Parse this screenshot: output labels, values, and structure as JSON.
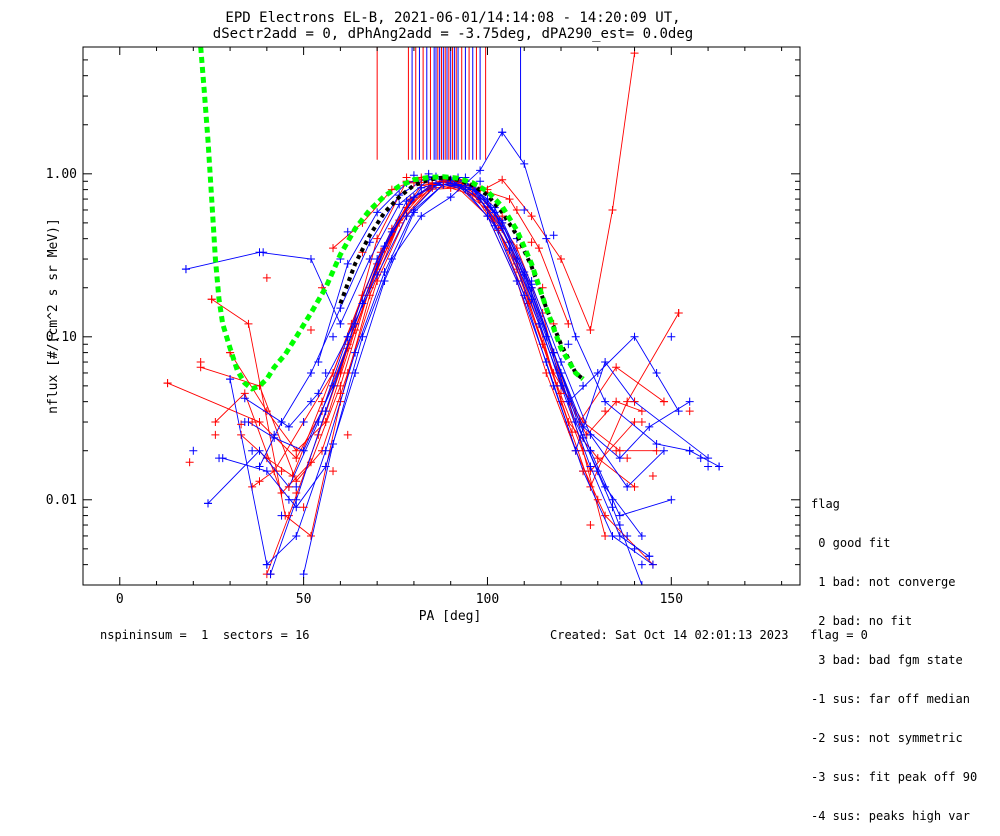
{
  "title_line1": "EPD Electrons EL-B, 2021-06-01/14:14:08 - 14:20:09 UT,",
  "title_line2": "dSectr2add = 0, dPhAng2add = -3.75deg, dPA290_est=   0.0deg",
  "footer_left": "nspininsum =  1  sectors = 16",
  "footer_right": "Created: Sat Oct 14 02:01:13 2023   flag = 0",
  "legend": {
    "title": "flag",
    "items": [
      " 0 good fit",
      " 1 bad: not converge",
      " 2 bad: no fit",
      " 3 bad: bad fgm state",
      "-1 sus: far off median",
      "-2 sus: not symmetric",
      "-3 sus: fit peak off 90",
      "-4 sus: peaks high var"
    ]
  },
  "colors": {
    "red": "#ff0000",
    "blue": "#0000ff",
    "green": "#00ff00",
    "black": "#000000"
  },
  "chart_data": {
    "type": "line",
    "xlabel": "PA [deg]",
    "ylabel": "nflux [#/(cm^2 s sr MeV)]",
    "xlim": [
      -10,
      185
    ],
    "ylim": [
      0.003,
      6.0
    ],
    "yscale": "log",
    "x_ticks": [
      0,
      50,
      100,
      150
    ],
    "x_tick_labels": [
      "0",
      "50",
      "100",
      "150"
    ],
    "y_ticks": [
      0.01,
      0.1,
      1.0
    ],
    "y_tick_labels": [
      "0.01",
      "0.10",
      "1.00"
    ],
    "series": [
      {
        "color": "red",
        "x": [
          13,
          38,
          48,
          55,
          62,
          70,
          78,
          85,
          92,
          100,
          108,
          115,
          120,
          127,
          135,
          142
        ],
        "y": [
          0.052,
          0.03,
          0.018,
          0.035,
          0.09,
          0.28,
          0.62,
          0.88,
          0.9,
          0.66,
          0.35,
          0.14,
          0.05,
          0.025,
          0.04,
          0.035
        ]
      },
      {
        "color": "red",
        "x": [
          22,
          38,
          48,
          55,
          62,
          70,
          78,
          85,
          92,
          100,
          108,
          115,
          122,
          130,
          140
        ],
        "y": [
          0.065,
          0.05,
          0.013,
          0.02,
          0.06,
          0.22,
          0.55,
          0.82,
          0.84,
          0.6,
          0.28,
          0.09,
          0.03,
          0.018,
          0.012
        ]
      },
      {
        "color": "red",
        "x": [
          25,
          35,
          45,
          52,
          60,
          68,
          76,
          84,
          92,
          100,
          108,
          116,
          124,
          132,
          145
        ],
        "y": [
          0.17,
          0.12,
          0.008,
          0.006,
          0.04,
          0.18,
          0.5,
          0.8,
          0.82,
          0.55,
          0.22,
          0.06,
          0.02,
          0.008,
          0.004
        ]
      },
      {
        "color": "red",
        "x": [
          30,
          40,
          48,
          56,
          64,
          72,
          80,
          88,
          96,
          104,
          112,
          118,
          125,
          135,
          148
        ],
        "y": [
          0.08,
          0.035,
          0.02,
          0.03,
          0.11,
          0.35,
          0.72,
          0.92,
          0.86,
          0.5,
          0.2,
          0.08,
          0.03,
          0.065,
          0.04
        ]
      },
      {
        "color": "red",
        "x": [
          36,
          42,
          50,
          58,
          66,
          74,
          82,
          90,
          98,
          106,
          114,
          120,
          128,
          138,
          152
        ],
        "y": [
          0.012,
          0.015,
          0.03,
          0.06,
          0.18,
          0.46,
          0.85,
          0.9,
          0.7,
          0.38,
          0.12,
          0.04,
          0.012,
          0.04,
          0.14
        ]
      },
      {
        "color": "red",
        "x": [
          40,
          46,
          54,
          62,
          70,
          78,
          86,
          94,
          102,
          110,
          118,
          126,
          132
        ],
        "y": [
          0.0035,
          0.008,
          0.025,
          0.085,
          0.26,
          0.62,
          0.86,
          0.85,
          0.55,
          0.24,
          0.08,
          0.02,
          0.006
        ]
      },
      {
        "color": "red",
        "x": [
          33,
          40,
          47,
          55,
          63,
          71,
          79,
          87,
          95,
          103,
          111,
          119,
          128,
          140
        ],
        "y": [
          0.025,
          0.018,
          0.014,
          0.04,
          0.12,
          0.33,
          0.7,
          0.9,
          0.82,
          0.45,
          0.16,
          0.05,
          0.015,
          0.03
        ]
      },
      {
        "color": "red",
        "x": [
          60,
          70,
          78,
          84,
          90,
          96,
          104,
          112,
          120,
          128,
          134,
          140
        ],
        "y": [
          0.06,
          0.4,
          0.9,
          0.88,
          0.82,
          0.74,
          0.92,
          0.55,
          0.3,
          0.11,
          0.6,
          5.5
        ]
      },
      {
        "color": "red",
        "x": [
          26,
          34,
          44,
          52,
          60,
          68,
          76,
          84,
          92,
          100,
          108,
          118,
          126,
          136,
          146
        ],
        "y": [
          0.03,
          0.045,
          0.011,
          0.017,
          0.05,
          0.2,
          0.52,
          0.84,
          0.88,
          0.62,
          0.26,
          0.06,
          0.03,
          0.02,
          0.02
        ]
      },
      {
        "color": "red",
        "x": [
          58,
          66,
          74,
          82,
          90,
          98,
          106,
          114,
          122
        ],
        "y": [
          0.35,
          0.5,
          0.8,
          0.95,
          0.92,
          0.8,
          0.7,
          0.35,
          0.12
        ]
      },
      {
        "color": "blue",
        "x": [
          18,
          38,
          52,
          60,
          68,
          76,
          84,
          92,
          100,
          108,
          116,
          124,
          132,
          142
        ],
        "y": [
          0.26,
          0.33,
          0.3,
          0.12,
          0.3,
          0.65,
          0.92,
          0.95,
          0.7,
          0.3,
          0.1,
          0.03,
          0.012,
          0.006
        ]
      },
      {
        "color": "blue",
        "x": [
          24,
          38,
          46,
          54,
          62,
          70,
          78,
          86,
          94,
          102,
          110,
          118,
          126,
          134,
          145
        ],
        "y": [
          0.0095,
          0.02,
          0.012,
          0.03,
          0.1,
          0.3,
          0.68,
          0.88,
          0.8,
          0.48,
          0.18,
          0.05,
          0.015,
          0.006,
          0.004
        ]
      },
      {
        "color": "blue",
        "x": [
          30,
          40,
          48,
          56,
          64,
          72,
          80,
          88,
          96,
          104,
          112,
          120,
          128,
          136,
          150
        ],
        "y": [
          0.055,
          0.004,
          0.006,
          0.02,
          0.08,
          0.25,
          0.6,
          0.86,
          0.82,
          0.5,
          0.2,
          0.06,
          0.02,
          0.008,
          0.01
        ]
      },
      {
        "color": "blue",
        "x": [
          38,
          44,
          52,
          60,
          68,
          76,
          84,
          92,
          100,
          108,
          116,
          124,
          132,
          140,
          160
        ],
        "y": [
          0.016,
          0.03,
          0.06,
          0.15,
          0.38,
          0.74,
          0.96,
          0.86,
          0.55,
          0.22,
          0.07,
          0.02,
          0.07,
          0.04,
          0.018
        ]
      },
      {
        "color": "blue",
        "x": [
          41,
          48,
          56,
          64,
          72,
          80,
          88,
          96,
          104,
          112,
          120,
          128,
          136,
          144
        ],
        "y": [
          0.0035,
          0.01,
          0.035,
          0.12,
          0.36,
          0.72,
          0.9,
          0.8,
          0.46,
          0.17,
          0.05,
          0.016,
          0.006,
          0.0045
        ]
      },
      {
        "color": "blue",
        "x": [
          35,
          42,
          50,
          58,
          66,
          74,
          82,
          90,
          98,
          106,
          114,
          122,
          130,
          140,
          152
        ],
        "y": [
          0.03,
          0.024,
          0.02,
          0.05,
          0.16,
          0.44,
          0.82,
          0.92,
          0.7,
          0.34,
          0.12,
          0.04,
          0.06,
          0.1,
          0.035
        ]
      },
      {
        "color": "blue",
        "x": [
          50,
          58,
          66,
          74,
          82,
          90,
          98,
          104,
          110,
          116,
          124,
          132,
          146,
          155,
          163
        ],
        "y": [
          0.0035,
          0.022,
          0.1,
          0.3,
          0.55,
          0.72,
          1.05,
          1.8,
          1.15,
          0.4,
          0.1,
          0.04,
          0.022,
          0.02,
          0.016
        ]
      },
      {
        "color": "blue",
        "x": [
          28,
          40,
          48,
          56,
          64,
          72,
          80,
          88,
          96,
          104,
          112,
          120,
          128,
          138,
          148
        ],
        "y": [
          0.018,
          0.015,
          0.009,
          0.016,
          0.06,
          0.22,
          0.58,
          0.86,
          0.84,
          0.52,
          0.21,
          0.07,
          0.025,
          0.012,
          0.02
        ]
      },
      {
        "color": "blue",
        "x": [
          54,
          62,
          70,
          78,
          86,
          94,
          102,
          110,
          118,
          126,
          134,
          142
        ],
        "y": [
          0.07,
          0.28,
          0.58,
          0.88,
          0.96,
          0.9,
          0.62,
          0.25,
          0.08,
          0.024,
          0.009,
          0.003
        ]
      },
      {
        "color": "blue",
        "x": [
          34,
          46,
          54,
          62,
          70,
          78,
          86,
          94,
          102,
          110,
          118,
          126,
          136,
          144,
          155
        ],
        "y": [
          0.042,
          0.028,
          0.045,
          0.1,
          0.24,
          0.55,
          0.85,
          0.9,
          0.58,
          0.24,
          0.08,
          0.028,
          0.018,
          0.028,
          0.04
        ]
      }
    ],
    "markers": [
      {
        "color": "red",
        "x": [
          13,
          19,
          22,
          25,
          26,
          30,
          33,
          36,
          38,
          40,
          41,
          44,
          46,
          48,
          50,
          52,
          55,
          58,
          60,
          62,
          64,
          66,
          78,
          80,
          82,
          85,
          88,
          92,
          96,
          100,
          104,
          108,
          112,
          115,
          118,
          120,
          123,
          126,
          128,
          130,
          132,
          135,
          138,
          140,
          142,
          145,
          148,
          152,
          155
        ],
        "y": [
          0.052,
          0.017,
          0.07,
          0.17,
          0.025,
          0.08,
          0.029,
          0.03,
          0.013,
          0.23,
          0.0035,
          0.015,
          0.012,
          0.011,
          0.009,
          0.11,
          0.2,
          0.015,
          0.045,
          0.025,
          0.12,
          0.33,
          0.95,
          0.88,
          0.92,
          0.86,
          0.9,
          0.92,
          0.85,
          0.8,
          0.55,
          0.6,
          0.38,
          0.2,
          0.12,
          0.045,
          0.026,
          0.015,
          0.007,
          0.01,
          0.035,
          0.02,
          0.018,
          0.04,
          0.03,
          0.014,
          0.04,
          0.14,
          0.035
        ]
      },
      {
        "color": "blue",
        "x": [
          18,
          20,
          24,
          27,
          30,
          34,
          36,
          38,
          39,
          40,
          41,
          42,
          44,
          46,
          48,
          50,
          52,
          56,
          58,
          60,
          62,
          64,
          80,
          84,
          86,
          90,
          94,
          98,
          104,
          108,
          110,
          112,
          118,
          122,
          126,
          128,
          130,
          134,
          136,
          138,
          140,
          142,
          144,
          146,
          150,
          155,
          158,
          160,
          163
        ],
        "y": [
          0.26,
          0.02,
          0.0095,
          0.018,
          0.055,
          0.03,
          0.02,
          0.016,
          0.33,
          0.004,
          0.0035,
          0.025,
          0.008,
          0.01,
          0.012,
          0.03,
          0.04,
          0.06,
          0.1,
          0.3,
          0.44,
          0.12,
          0.98,
          1.0,
          0.96,
          0.92,
          0.95,
          0.9,
          1.8,
          0.4,
          0.6,
          0.22,
          0.42,
          0.09,
          0.05,
          0.02,
          0.015,
          0.01,
          0.007,
          0.006,
          0.005,
          0.004,
          0.0045,
          0.06,
          0.1,
          0.02,
          0.018,
          0.016,
          0.016
        ]
      }
    ],
    "spikes_red": [
      70,
      78.5,
      80.5,
      82.5,
      84.5,
      86.5,
      87.5,
      88.5,
      89.5,
      90.5,
      91.5,
      93,
      95,
      97,
      99.5
    ],
    "spikes_blue": [
      79.5,
      81.5,
      83.5,
      85.5,
      86,
      87,
      88,
      89,
      90,
      91,
      92,
      94,
      96,
      98,
      109
    ],
    "spike_bottom": 1.22,
    "green_curve": {
      "x": [
        22,
        23,
        24,
        25,
        26,
        27,
        28,
        30,
        32,
        34,
        36,
        38,
        40,
        42,
        45,
        48,
        52,
        56,
        60,
        64,
        68,
        72,
        76,
        80,
        84,
        88,
        92,
        96,
        100,
        104,
        108,
        112,
        116,
        120,
        124,
        126
      ],
      "y": [
        6.0,
        3.2,
        1.6,
        0.7,
        0.3,
        0.17,
        0.12,
        0.085,
        0.062,
        0.052,
        0.048,
        0.05,
        0.055,
        0.065,
        0.078,
        0.1,
        0.14,
        0.2,
        0.32,
        0.46,
        0.6,
        0.73,
        0.84,
        0.92,
        0.95,
        0.96,
        0.94,
        0.88,
        0.78,
        0.63,
        0.45,
        0.28,
        0.15,
        0.085,
        0.06,
        0.055
      ]
    },
    "black_curve": {
      "x": [
        60,
        64,
        68,
        72,
        76,
        80,
        84,
        88,
        92,
        96,
        100,
        104,
        108,
        112,
        116,
        120,
        124,
        126
      ],
      "y": [
        0.16,
        0.28,
        0.42,
        0.58,
        0.72,
        0.85,
        0.92,
        0.95,
        0.92,
        0.85,
        0.74,
        0.58,
        0.42,
        0.27,
        0.15,
        0.09,
        0.06,
        0.055
      ]
    }
  }
}
